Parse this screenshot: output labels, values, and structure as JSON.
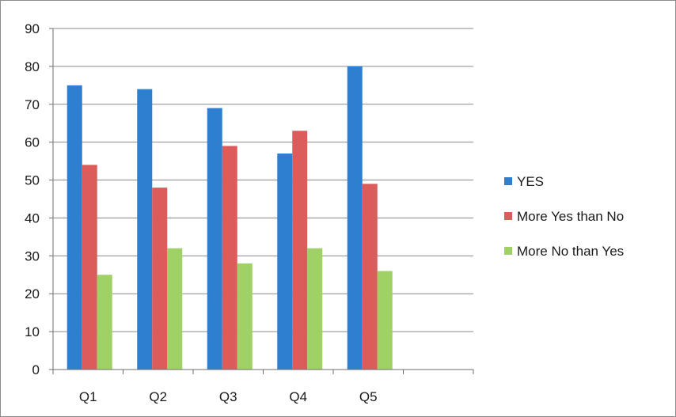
{
  "chart_data": {
    "type": "bar",
    "categories": [
      "Q1",
      "Q2",
      "Q3",
      "Q4",
      "Q5"
    ],
    "series": [
      {
        "name": "YES",
        "values": [
          75,
          74,
          69,
          57,
          80
        ],
        "color": "#2e7fd0"
      },
      {
        "name": "More Yes than No",
        "values": [
          54,
          48,
          59,
          63,
          49
        ],
        "color": "#dc5b5b"
      },
      {
        "name": "More No than Yes",
        "values": [
          25,
          32,
          28,
          32,
          26
        ],
        "color": "#9fd167"
      }
    ],
    "title": "",
    "xlabel": "",
    "ylabel": "",
    "ylim": [
      0,
      90
    ],
    "yticks": [
      0,
      10,
      20,
      30,
      40,
      50,
      60,
      70,
      80,
      90
    ],
    "grid": true,
    "legend_position": "right"
  }
}
